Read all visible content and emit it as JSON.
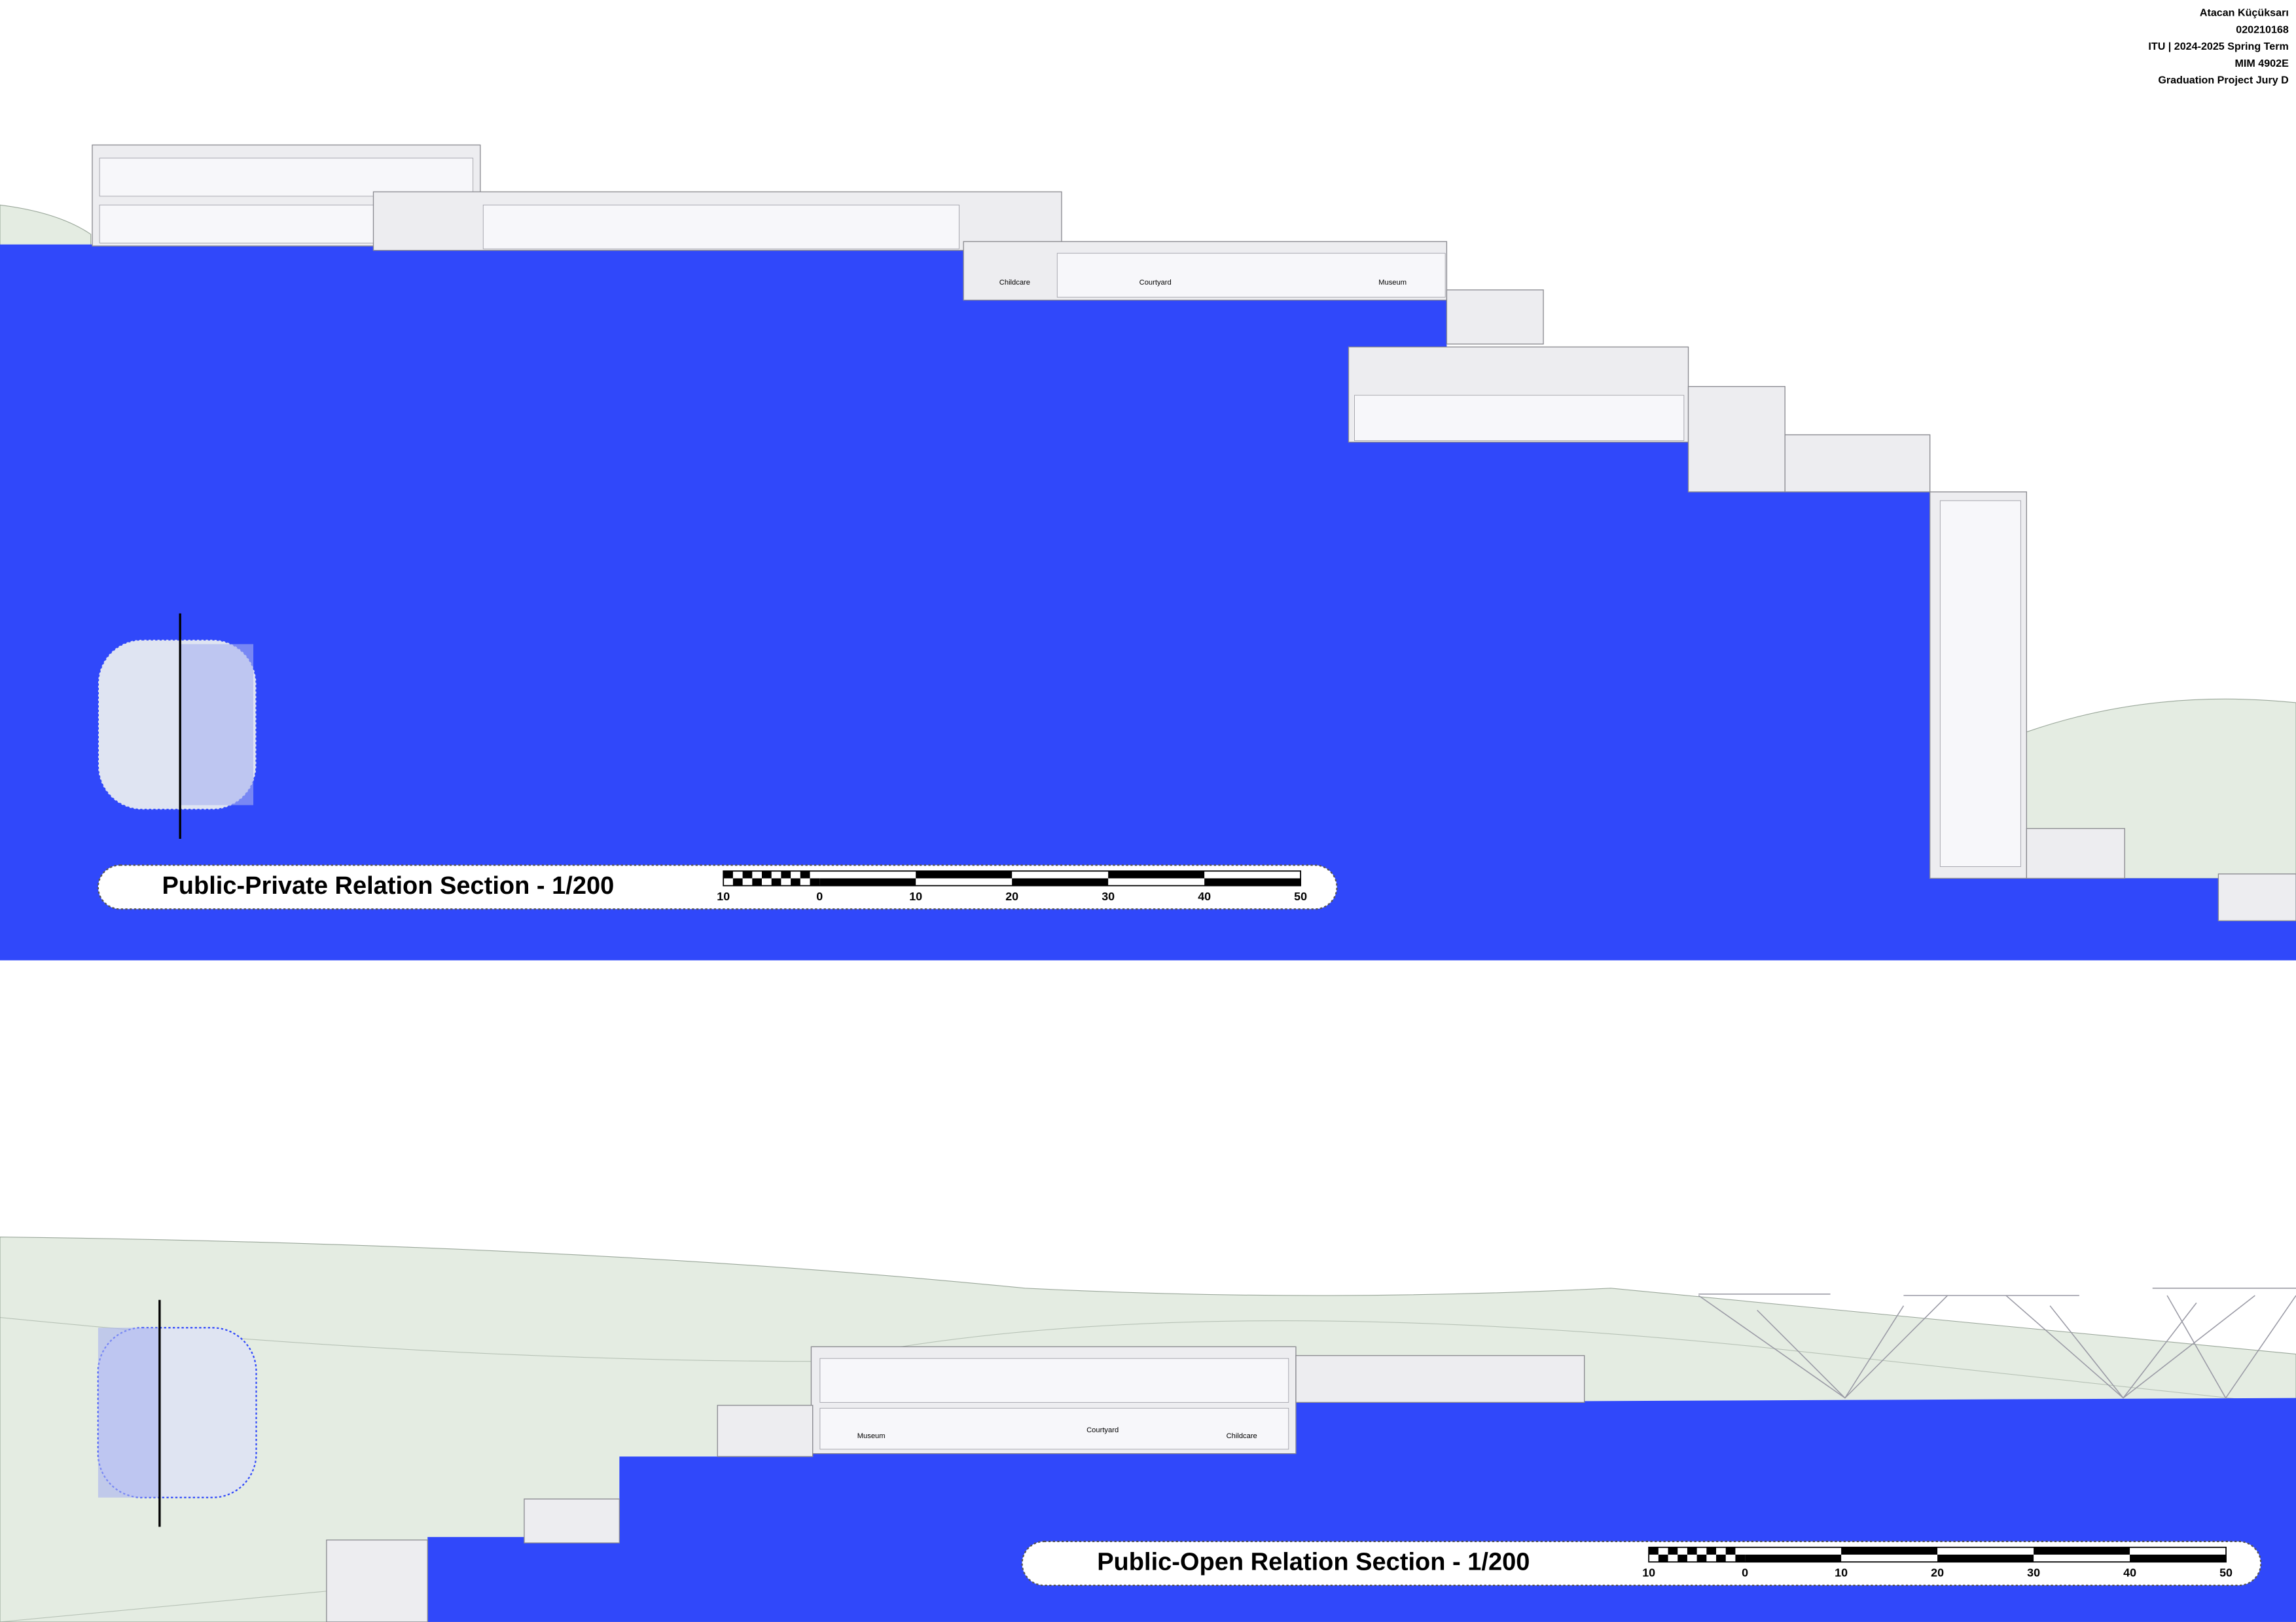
{
  "header": {
    "lines": [
      "Atacan Küçüksarı",
      "020210168",
      "ITU | 2024-2025 Spring Term",
      "MIM 4902E",
      "Graduation Project Jury D"
    ]
  },
  "sections": [
    {
      "title": "Public-Private Relation Section - 1/200",
      "rooms": [
        "Childcare",
        "Courtyard",
        "Museum"
      ],
      "scale_labels": [
        "10",
        "0",
        "10",
        "20",
        "30",
        "40",
        "50"
      ]
    },
    {
      "title": "Public-Open Relation Section - 1/200",
      "rooms": [
        "Museum",
        "Courtyard",
        "Childcare"
      ],
      "scale_labels": [
        "10",
        "0",
        "10",
        "20",
        "30",
        "40",
        "50"
      ]
    }
  ]
}
